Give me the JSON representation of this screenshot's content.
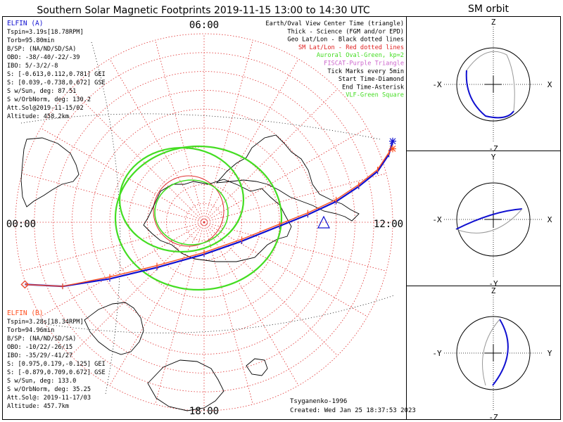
{
  "title": "Southern Solar Magnetic Footprints 2019-11-15 13:00 to 14:30 UTC",
  "orbit_title": "SM orbit",
  "colors": {
    "grid_red": "#e03030",
    "geo_black": "#000000",
    "blue_track": "#1010d0",
    "red_track": "#ff5020",
    "oval_green": "#44dd22",
    "fiscat_purple": "#cc66cc",
    "vlf_green": "#22bb22",
    "gray_orbit": "#999999"
  },
  "main_plot": {
    "mlt_labels": {
      "top": "06:00",
      "left": "00:00",
      "right": "12:00",
      "bottom": "18:00"
    }
  },
  "legend": [
    {
      "text": "Earth/Oval View Center Time (triangle)",
      "color": "#000000"
    },
    {
      "text": "Thick - Science (FGM and/or EPD)",
      "color": "#000000"
    },
    {
      "text": "Geo Lat/Lon - Black dotted lines",
      "color": "#000000"
    },
    {
      "text": "SM Lat/Lon - Red dotted lines",
      "color": "#e02020"
    },
    {
      "text": "Auroral Oval-Green, kp=2",
      "color": "#44dd22"
    },
    {
      "text": "FISCAT-Purple Triangle",
      "color": "#cc66cc"
    },
    {
      "text": "Tick Marks every 5min",
      "color": "#000000"
    },
    {
      "text": "Start Time-Diamond",
      "color": "#000000"
    },
    {
      "text": "End Time-Asterisk",
      "color": "#000000"
    },
    {
      "text": "VLF-Green Square",
      "color": "#44dd22"
    }
  ],
  "elfin_a": {
    "name": "ELFIN (A)",
    "color": "#1010d0",
    "lines": [
      "Tspin=3.19s[18.78RPM]",
      "Torb=95.80min",
      "B/SP: (NA/ND/SD/SA)",
      "OBO: -38/-40/-22/-39",
      "IBO: 5/-3/2/-8",
      "S: [-0.613,0.112,0.781] GEI",
      "S: [0.039,-0.738,0.672] GSE",
      "S w/Sun, deg: 87.51",
      "S w/OrbNorm, deg: 130.2",
      "Att.Sol@2019-11-15/02",
      "Altitude: 458.2km"
    ]
  },
  "elfin_b": {
    "name": "ELFIN (B)",
    "color": "#ff5020",
    "lines": [
      "Tspin=3.28s[18.34RPM]",
      "Torb=94.96min",
      "B/SP: (NA/ND/SD/SA)",
      "OBO: -10/22/-26/15",
      "IBO: -35/29/-41/27",
      "S: [0.975,0.179,-0.125] GEI",
      "S: [-0.879,0.709,0.672] GSE",
      "S w/Sun, deg: 133.0",
      "S w/OrbNorm, deg: 35.25",
      "Att.Sol@: 2019-11-17/03",
      "Altitude: 457.7km"
    ]
  },
  "credits": {
    "model": "Tsyganenko-1996",
    "created": "Created: Wed Jan 25 18:37:53 2023"
  },
  "orbit_panels": [
    {
      "top": "Z",
      "bottom": "-Z",
      "left": "-X",
      "right": "X"
    },
    {
      "top": "Y",
      "bottom": "-Y",
      "left": "-X",
      "right": "X"
    },
    {
      "top": "Z",
      "bottom": "-Z",
      "left": "-Y",
      "right": "Y"
    }
  ],
  "chart_data": {
    "type": "scatter",
    "title": "Southern Solar Magnetic Footprints 2019-11-15 13:00 to 14:30 UTC",
    "xlabel": "",
    "ylabel": "",
    "projection": "polar (magnetic local time / SM latitude)",
    "radial_axis": "SM colatitude from south magnetic pole, deg",
    "radial_range": [
      0,
      50
    ],
    "grid": true,
    "series": [
      {
        "name": "ELFIN (A)",
        "color": "#1010d0",
        "x": [
          -0.95,
          -0.75,
          -0.5,
          -0.25,
          0.0,
          0.2,
          0.4,
          0.55,
          0.7,
          0.82,
          0.92,
          0.98,
          1.0
        ],
        "y": [
          -0.33,
          -0.34,
          -0.3,
          -0.24,
          -0.17,
          -0.1,
          -0.02,
          0.04,
          0.11,
          0.19,
          0.27,
          0.36,
          0.43
        ]
      },
      {
        "name": "ELFIN (B)",
        "color": "#ff5020",
        "x": [
          -0.95,
          -0.75,
          -0.5,
          -0.25,
          0.0,
          0.2,
          0.4,
          0.55,
          0.7,
          0.82,
          0.92,
          0.98,
          1.0
        ],
        "y": [
          -0.33,
          -0.34,
          -0.29,
          -0.23,
          -0.16,
          -0.09,
          -0.01,
          0.05,
          0.12,
          0.2,
          0.28,
          0.37,
          0.39
        ]
      }
    ]
  }
}
